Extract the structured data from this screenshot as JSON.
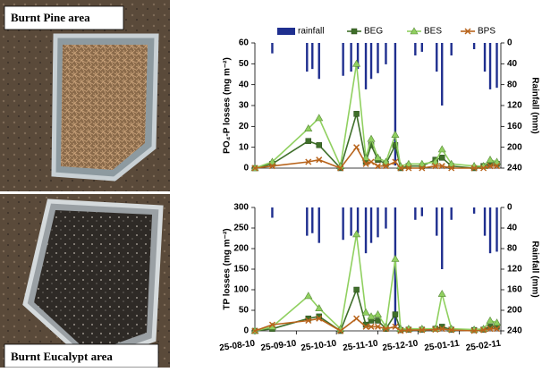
{
  "images": [
    {
      "label": "Burnt Pine area"
    },
    {
      "label": "Burnt Eucalypt area"
    }
  ],
  "legend": {
    "names": [
      "rainfall",
      "BEG",
      "BES",
      "BPS"
    ]
  },
  "chart_data": [
    {
      "type": "line",
      "ylabel": "PO₄-P losses (mg m⁻²)",
      "y2label": "Rainfall (mm)",
      "xlim": [
        "2010-08-25",
        "2011-02-25"
      ],
      "ylim": [
        0,
        60
      ],
      "yticks": [
        0,
        10,
        20,
        30,
        40,
        50,
        60
      ],
      "y2lim": [
        0,
        240
      ],
      "y2ticks": [
        0,
        40,
        80,
        120,
        160,
        200,
        240
      ],
      "y2_reversed": true,
      "x": [
        "2010-08-25",
        "2010-09-07",
        "2010-10-04",
        "2010-10-12",
        "2010-10-28",
        "2010-11-09",
        "2010-11-16",
        "2010-11-20",
        "2010-11-25",
        "2010-12-01",
        "2010-12-08",
        "2010-12-12",
        "2010-12-18",
        "2010-12-28",
        "2011-01-07",
        "2011-01-12",
        "2011-01-19",
        "2011-02-05",
        "2011-02-12",
        "2011-02-17",
        "2011-02-22"
      ],
      "series": [
        {
          "name": "rainfall",
          "type": "bar",
          "axis": "y2",
          "color": "#1f2f8f",
          "x": [
            "2010-09-07",
            "2010-10-03",
            "2010-10-07",
            "2010-10-12",
            "2010-10-30",
            "2010-11-05",
            "2010-11-10",
            "2010-11-16",
            "2010-11-20",
            "2010-11-25",
            "2010-12-01",
            "2010-12-08",
            "2010-12-23",
            "2010-12-28",
            "2011-01-08",
            "2011-01-12",
            "2011-01-19",
            "2011-02-05",
            "2011-02-13",
            "2011-02-17",
            "2011-02-22"
          ],
          "values": [
            20,
            55,
            50,
            69,
            63,
            55,
            50,
            89,
            69,
            58,
            41,
            235,
            24,
            17,
            55,
            120,
            24,
            12,
            55,
            89,
            86
          ]
        },
        {
          "name": "BEG",
          "color": "#3f6f2a",
          "marker": "square",
          "values": [
            0,
            2,
            13,
            11,
            0,
            26,
            3,
            11,
            4,
            2,
            11,
            0,
            1,
            1,
            4,
            5,
            1,
            0,
            1,
            2,
            2
          ]
        },
        {
          "name": "BES",
          "color": "#90d060",
          "marker": "triangle",
          "values": [
            0,
            3,
            19,
            24,
            1,
            50,
            5,
            14,
            5,
            3,
            16,
            1,
            2,
            2,
            3,
            9,
            2,
            1,
            1,
            4,
            3
          ]
        },
        {
          "name": "BPS",
          "color": "#b8641c",
          "marker": "cross",
          "values": [
            0,
            1,
            3,
            4,
            0,
            10,
            2,
            3,
            1,
            1,
            3,
            0,
            0,
            0,
            1,
            1,
            0,
            0,
            0,
            1,
            1
          ]
        }
      ]
    },
    {
      "type": "line",
      "ylabel": "TP losses (mg m⁻²)",
      "y2label": "Rainfall (mm)",
      "xlim": [
        "2010-08-25",
        "2011-02-25"
      ],
      "xticks": [
        {
          "value": "2010-08-25",
          "label": "25-08-10"
        },
        {
          "value": "2010-09-25",
          "label": "25-09-10"
        },
        {
          "value": "2010-10-25",
          "label": "25-10-10"
        },
        {
          "value": "2010-11-25",
          "label": "25-11-10"
        },
        {
          "value": "2010-12-25",
          "label": "25-12-10"
        },
        {
          "value": "2011-01-25",
          "label": "25-01-11"
        },
        {
          "value": "2011-02-25",
          "label": "25-02-11"
        }
      ],
      "ylim": [
        0,
        300
      ],
      "yticks": [
        0,
        50,
        100,
        150,
        200,
        250,
        300
      ],
      "y2lim": [
        0,
        240
      ],
      "y2ticks": [
        0,
        40,
        80,
        120,
        160,
        200,
        240
      ],
      "y2_reversed": true,
      "x": [
        "2010-08-25",
        "2010-09-07",
        "2010-10-04",
        "2010-10-12",
        "2010-10-28",
        "2010-11-09",
        "2010-11-16",
        "2010-11-20",
        "2010-11-25",
        "2010-12-01",
        "2010-12-08",
        "2010-12-12",
        "2010-12-18",
        "2010-12-28",
        "2011-01-07",
        "2011-01-12",
        "2011-01-19",
        "2011-02-05",
        "2011-02-12",
        "2011-02-17",
        "2011-02-22"
      ],
      "series": [
        {
          "type": "bar",
          "axis": "y2",
          "color": "#1f2f8f",
          "x": [
            "2010-09-07",
            "2010-10-03",
            "2010-10-07",
            "2010-10-12",
            "2010-10-30",
            "2010-11-05",
            "2010-11-10",
            "2010-11-16",
            "2010-11-20",
            "2010-11-25",
            "2010-12-01",
            "2010-12-08",
            "2010-12-23",
            "2010-12-28",
            "2011-01-08",
            "2011-01-12",
            "2011-01-19",
            "2011-02-05",
            "2011-02-13",
            "2011-02-17",
            "2011-02-22"
          ],
          "values": [
            20,
            55,
            50,
            69,
            63,
            55,
            50,
            89,
            69,
            58,
            41,
            235,
            24,
            17,
            55,
            120,
            24,
            12,
            55,
            89,
            86
          ]
        },
        {
          "color": "#3f6f2a",
          "marker": "square",
          "values": [
            0,
            5,
            30,
            35,
            0,
            100,
            15,
            25,
            25,
            5,
            40,
            2,
            3,
            3,
            5,
            10,
            3,
            2,
            3,
            10,
            10
          ]
        },
        {
          "color": "#90d060",
          "marker": "triangle",
          "values": [
            0,
            10,
            85,
            55,
            5,
            235,
            45,
            35,
            40,
            10,
            175,
            5,
            5,
            5,
            5,
            90,
            5,
            3,
            5,
            25,
            20
          ]
        },
        {
          "color": "#b8641c",
          "marker": "cross",
          "values": [
            0,
            15,
            25,
            30,
            0,
            30,
            10,
            10,
            10,
            5,
            10,
            0,
            2,
            2,
            3,
            5,
            2,
            0,
            2,
            5,
            5
          ]
        }
      ]
    }
  ]
}
